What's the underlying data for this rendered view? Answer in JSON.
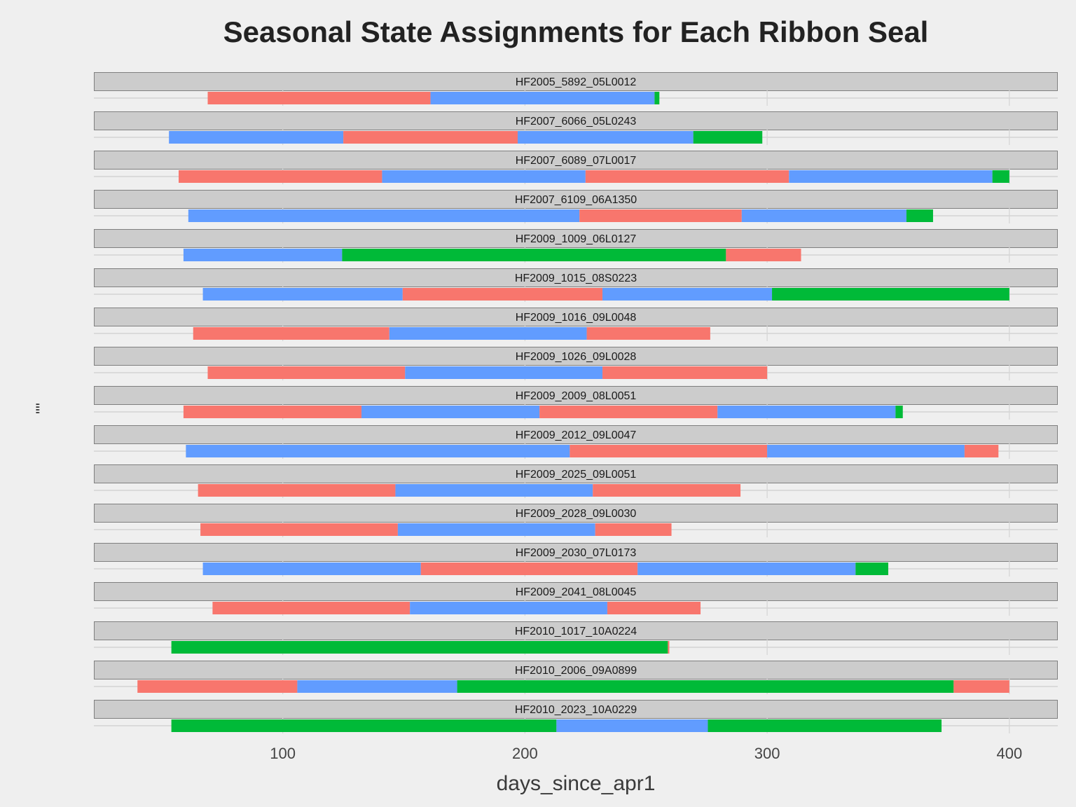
{
  "chart_data": {
    "type": "bar",
    "title": "Seasonal State Assignments for Each Ribbon Seal",
    "xlabel": "days_since_apr1",
    "ylabel": "\"\"",
    "xlim": [
      22,
      420
    ],
    "xticks": [
      100,
      200,
      300,
      400
    ],
    "grid": true,
    "colors": {
      "red": "#f8766d",
      "blue": "#619cff",
      "green": "#00ba38"
    },
    "panels": [
      {
        "id": "HF2005_5892_05L0012",
        "segments": [
          {
            "start": 69,
            "end": 161,
            "state": "red"
          },
          {
            "start": 161,
            "end": 253.5,
            "state": "blue"
          },
          {
            "start": 253.5,
            "end": 255.5,
            "state": "green"
          }
        ]
      },
      {
        "id": "HF2007_6066_05L0243",
        "segments": [
          {
            "start": 53,
            "end": 125,
            "state": "blue"
          },
          {
            "start": 125,
            "end": 197,
            "state": "red"
          },
          {
            "start": 197,
            "end": 269.5,
            "state": "blue"
          },
          {
            "start": 269.5,
            "end": 298,
            "state": "green"
          }
        ]
      },
      {
        "id": "HF2007_6089_07L0017",
        "segments": [
          {
            "start": 57,
            "end": 141,
            "state": "red"
          },
          {
            "start": 141,
            "end": 225,
            "state": "blue"
          },
          {
            "start": 225,
            "end": 309,
            "state": "red"
          },
          {
            "start": 309,
            "end": 393,
            "state": "blue"
          },
          {
            "start": 393,
            "end": 400,
            "state": "green"
          }
        ]
      },
      {
        "id": "HF2007_6109_06A1350",
        "segments": [
          {
            "start": 61,
            "end": 222.5,
            "state": "blue"
          },
          {
            "start": 222.5,
            "end": 289.5,
            "state": "red"
          },
          {
            "start": 289.5,
            "end": 357.5,
            "state": "blue"
          },
          {
            "start": 357.5,
            "end": 368.5,
            "state": "green"
          }
        ]
      },
      {
        "id": "HF2009_1009_06L0127",
        "segments": [
          {
            "start": 59,
            "end": 124.5,
            "state": "blue"
          },
          {
            "start": 124.5,
            "end": 283,
            "state": "green"
          },
          {
            "start": 283,
            "end": 314,
            "state": "red"
          }
        ]
      },
      {
        "id": "HF2009_1015_08S0223",
        "segments": [
          {
            "start": 67,
            "end": 149.5,
            "state": "blue"
          },
          {
            "start": 149.5,
            "end": 232,
            "state": "red"
          },
          {
            "start": 232,
            "end": 302,
            "state": "blue"
          },
          {
            "start": 302,
            "end": 400,
            "state": "green"
          }
        ]
      },
      {
        "id": "HF2009_1016_09L0048",
        "segments": [
          {
            "start": 63,
            "end": 144,
            "state": "red"
          },
          {
            "start": 144,
            "end": 225.5,
            "state": "blue"
          },
          {
            "start": 225.5,
            "end": 276.5,
            "state": "red"
          }
        ]
      },
      {
        "id": "HF2009_1026_09L0028",
        "segments": [
          {
            "start": 69,
            "end": 150.5,
            "state": "red"
          },
          {
            "start": 150.5,
            "end": 232,
            "state": "blue"
          },
          {
            "start": 232,
            "end": 300,
            "state": "red"
          }
        ]
      },
      {
        "id": "HF2009_2009_08L0051",
        "segments": [
          {
            "start": 59,
            "end": 132.5,
            "state": "red"
          },
          {
            "start": 132.5,
            "end": 206,
            "state": "blue"
          },
          {
            "start": 206,
            "end": 279.5,
            "state": "red"
          },
          {
            "start": 279.5,
            "end": 353,
            "state": "blue"
          },
          {
            "start": 353,
            "end": 356,
            "state": "green"
          }
        ]
      },
      {
        "id": "HF2009_2012_09L0047",
        "segments": [
          {
            "start": 60,
            "end": 218.5,
            "state": "blue"
          },
          {
            "start": 218.5,
            "end": 300,
            "state": "red"
          },
          {
            "start": 300,
            "end": 381.5,
            "state": "blue"
          },
          {
            "start": 381.5,
            "end": 395.5,
            "state": "red"
          }
        ]
      },
      {
        "id": "HF2009_2025_09L0051",
        "segments": [
          {
            "start": 65,
            "end": 146.5,
            "state": "red"
          },
          {
            "start": 146.5,
            "end": 228,
            "state": "blue"
          },
          {
            "start": 228,
            "end": 289,
            "state": "red"
          }
        ]
      },
      {
        "id": "HF2009_2028_09L0030",
        "segments": [
          {
            "start": 66,
            "end": 147.5,
            "state": "red"
          },
          {
            "start": 147.5,
            "end": 229,
            "state": "blue"
          },
          {
            "start": 229,
            "end": 260.5,
            "state": "red"
          }
        ]
      },
      {
        "id": "HF2009_2030_07L0173",
        "segments": [
          {
            "start": 67,
            "end": 157,
            "state": "blue"
          },
          {
            "start": 157,
            "end": 246.5,
            "state": "red"
          },
          {
            "start": 246.5,
            "end": 336.5,
            "state": "blue"
          },
          {
            "start": 336.5,
            "end": 350,
            "state": "green"
          }
        ]
      },
      {
        "id": "HF2009_2041_08L0045",
        "segments": [
          {
            "start": 71,
            "end": 152.5,
            "state": "red"
          },
          {
            "start": 152.5,
            "end": 234,
            "state": "blue"
          },
          {
            "start": 234,
            "end": 272.5,
            "state": "red"
          }
        ]
      },
      {
        "id": "HF2010_1017_10A0224",
        "segments": [
          {
            "start": 54,
            "end": 259,
            "state": "green"
          },
          {
            "start": 259,
            "end": 259.6,
            "state": "red"
          }
        ]
      },
      {
        "id": "HF2010_2006_09A0899",
        "segments": [
          {
            "start": 40,
            "end": 106,
            "state": "red"
          },
          {
            "start": 106,
            "end": 172,
            "state": "blue"
          },
          {
            "start": 172,
            "end": 377,
            "state": "green"
          },
          {
            "start": 377,
            "end": 400,
            "state": "red"
          }
        ]
      },
      {
        "id": "HF2010_2023_10A0229",
        "segments": [
          {
            "start": 54,
            "end": 213,
            "state": "green"
          },
          {
            "start": 213,
            "end": 275.5,
            "state": "blue"
          },
          {
            "start": 275.5,
            "end": 372,
            "state": "green"
          }
        ]
      }
    ]
  }
}
